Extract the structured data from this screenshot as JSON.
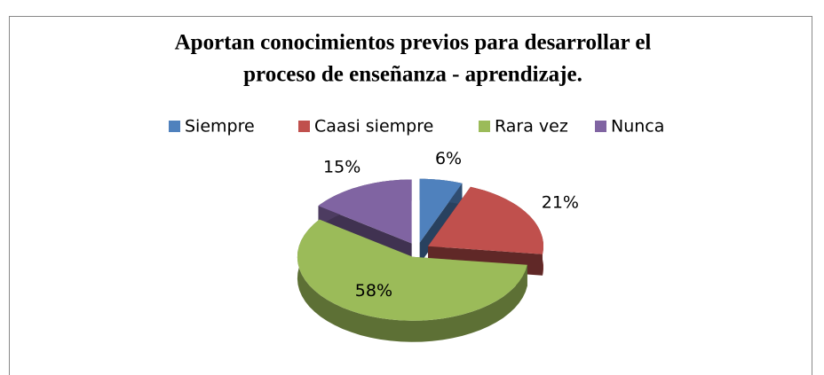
{
  "chart_data": {
    "type": "pie3d",
    "title": [
      "Aportan conocimientos previos para desarrollar el",
      "proceso de enseñanza - aprendizaje."
    ],
    "categories": [
      "Siempre",
      "Caasi siempre",
      "Rara vez",
      "Nunca"
    ],
    "values": [
      6,
      21,
      58,
      15
    ],
    "value_labels": [
      "6%",
      "21%",
      "58%",
      "15%"
    ],
    "colors": [
      "#4f81bd",
      "#c0504d",
      "#9bbb59",
      "#8064a2"
    ],
    "legend": "top"
  }
}
